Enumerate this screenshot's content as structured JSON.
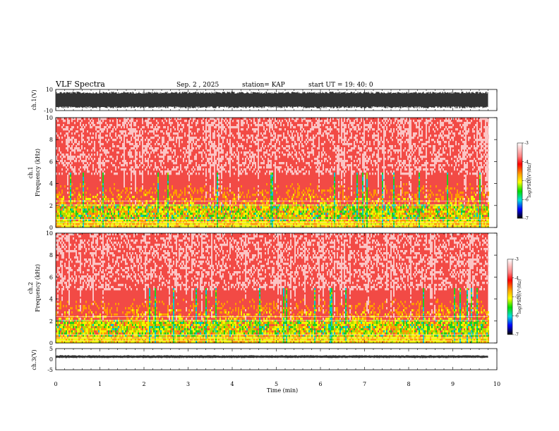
{
  "header": {
    "title": "VLF Spectra",
    "date": "Sep. 2  , 2025",
    "station": "station= KAP",
    "start": "start  UT  =   19: 40: 0"
  },
  "chart_data": [
    {
      "id": "ch1-waveform",
      "type": "line",
      "ylabel": "ch.1(V)",
      "ylim": [
        -10,
        10
      ],
      "yticks": [
        "10",
        "-10"
      ],
      "xlim": [
        0,
        10
      ],
      "envelope": {
        "center": 0,
        "typical_min": -8,
        "typical_max": 8,
        "clip": 10
      }
    },
    {
      "id": "ch1-spectrogram",
      "type": "heatmap",
      "ylabel": "ch.1\nFrequency  (kHz)",
      "ylim": [
        0,
        10
      ],
      "yticks": [
        "0",
        "2",
        "4",
        "6",
        "8",
        "10"
      ],
      "xlim": [
        0,
        10
      ],
      "data_end_min": 9.8,
      "colorbar": {
        "label": "log(PSD)(V²/Hz)",
        "ticks": [
          "-3",
          "-4",
          "-5",
          "-6",
          "-7"
        ],
        "range": [
          -7,
          -3
        ]
      }
    },
    {
      "id": "ch2-spectrogram",
      "type": "heatmap",
      "ylabel": "ch.2\nFrequency  (kHz)",
      "ylim": [
        0,
        10
      ],
      "yticks": [
        "0",
        "2",
        "4",
        "6",
        "8",
        "10"
      ],
      "xlim": [
        0,
        10
      ],
      "data_end_min": 9.8,
      "colorbar": {
        "label": "log(PSD)(V²/Hz)",
        "ticks": [
          "-3",
          "-4",
          "-5",
          "-6",
          "-7"
        ],
        "range": [
          -7,
          -3
        ]
      }
    },
    {
      "id": "ch3-waveform",
      "type": "line",
      "ylabel": "ch.3(V)",
      "ylim": [
        -5,
        5
      ],
      "yticks": [
        "5",
        "0",
        "-5"
      ],
      "xlim": [
        0,
        10
      ],
      "envelope": {
        "center": 1.2,
        "typical_min": 0.5,
        "typical_max": 1.9
      }
    }
  ],
  "xaxis": {
    "label": "Time  (min)",
    "ticks": [
      "0",
      "1",
      "2",
      "3",
      "4",
      "5",
      "6",
      "7",
      "8",
      "9",
      "10"
    ]
  },
  "colors": {
    "background": "#ffffff",
    "spectrogram_base": "#ee2a25",
    "trace": "#000000"
  }
}
